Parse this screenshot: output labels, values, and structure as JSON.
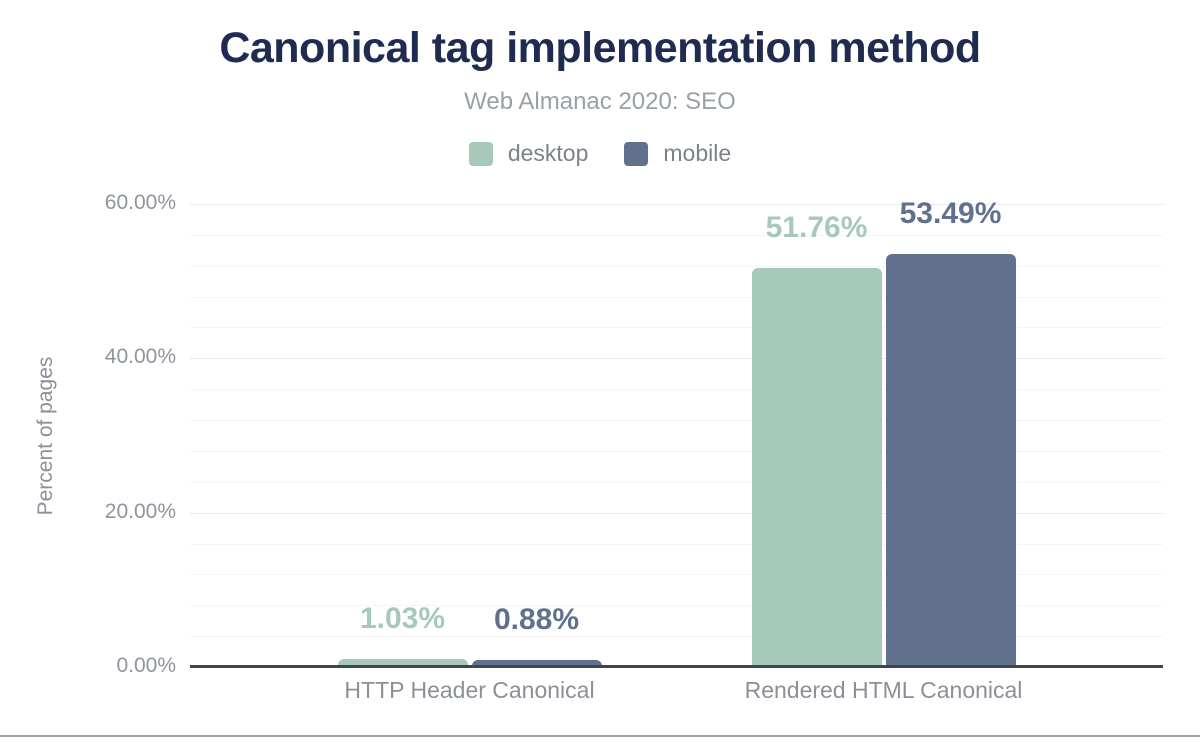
{
  "chart_data": {
    "type": "bar",
    "title": "Canonical tag implementation method",
    "subtitle": "Web Almanac 2020: SEO",
    "ylabel": "Percent of pages",
    "xlabel": "",
    "categories": [
      "HTTP Header Canonical",
      "Rendered HTML Canonical"
    ],
    "series": [
      {
        "name": "desktop",
        "color": "#a7c9ba",
        "values": [
          1.03,
          51.76
        ],
        "data_labels": [
          "1.03%",
          "51.76%"
        ]
      },
      {
        "name": "mobile",
        "color": "#61718d",
        "values": [
          0.88,
          53.49
        ],
        "data_labels": [
          "0.88%",
          "53.49%"
        ]
      }
    ],
    "ylim": [
      0,
      60
    ],
    "yticks": [
      0,
      20,
      40,
      60
    ],
    "ytick_labels": [
      "0.00%",
      "20.00%",
      "40.00%",
      "60.00%"
    ],
    "minor_grid_step": 4,
    "grid": true,
    "legend_position": "top"
  }
}
